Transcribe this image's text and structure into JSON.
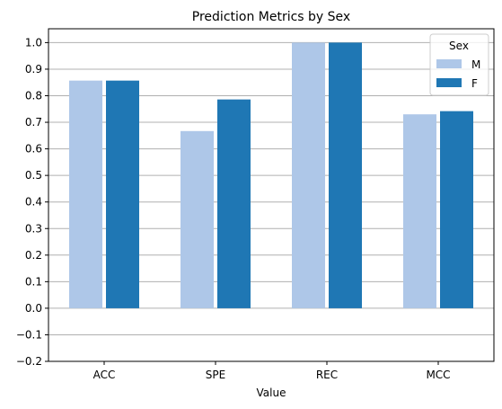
{
  "chart_data": {
    "type": "bar",
    "title": "Prediction Metrics by Sex",
    "xlabel": "Value",
    "ylabel": "",
    "categories": [
      "ACC",
      "SPE",
      "REC",
      "MCC"
    ],
    "ylim": [
      -0.2,
      1.05
    ],
    "yticks": [
      -0.2,
      -0.1,
      0.0,
      0.1,
      0.2,
      0.3,
      0.4,
      0.5,
      0.6,
      0.7,
      0.8,
      0.9,
      1.0
    ],
    "ytick_labels": [
      "−0.2",
      "−0.1",
      "0.0",
      "0.1",
      "0.2",
      "0.3",
      "0.4",
      "0.5",
      "0.6",
      "0.7",
      "0.8",
      "0.9",
      "1.0"
    ],
    "grid": "horizontal",
    "legend": {
      "title": "Sex",
      "placement": "top-right"
    },
    "series": [
      {
        "name": "M",
        "color": "#aec7e8",
        "values": [
          0.857,
          0.667,
          1.0,
          0.73
        ]
      },
      {
        "name": "F",
        "color": "#1f77b4",
        "values": [
          0.857,
          0.786,
          1.0,
          0.742
        ]
      }
    ]
  }
}
